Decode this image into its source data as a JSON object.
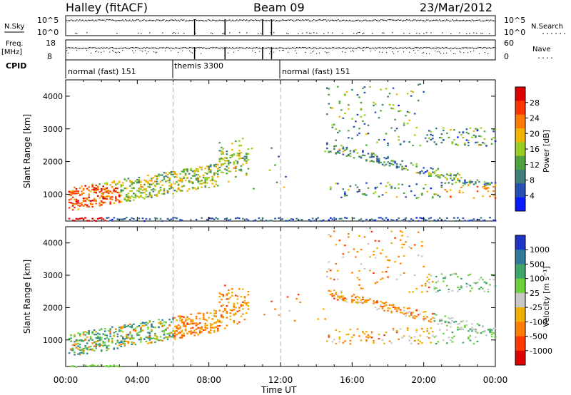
{
  "header": {
    "station": "Halley (fitACF)",
    "beam": "Beam 09",
    "date": "23/Mar/2012"
  },
  "strip_panels": {
    "noise": {
      "left_label": "N.Sky",
      "right_label": "N.Search",
      "right_legend_dots": "......",
      "left_ticks": [
        "10^5",
        "10^0"
      ],
      "right_ticks": [
        "10^5",
        "10^0"
      ]
    },
    "freq": {
      "left_label_line1": "Freq.",
      "left_label_line2": "[MHz]",
      "right_label": "Nave",
      "right_legend_dots": "....",
      "left_ticks": [
        "18",
        "8"
      ],
      "right_ticks": [
        "60",
        "0"
      ]
    },
    "cpid": {
      "label": "CPID",
      "segments": [
        {
          "name": "normal (fast) 151",
          "start_hour": 0.0,
          "end_hour": 6.0
        },
        {
          "name": "themis 3300",
          "start_hour": 6.0,
          "end_hour": 12.0
        },
        {
          "name": "normal (fast) 151",
          "start_hour": 12.0,
          "end_hour": 24.0
        }
      ]
    }
  },
  "chart_data": [
    {
      "type": "heatmap",
      "title": "",
      "xlabel": "Time UT",
      "ylabel": "Slant Range [km]",
      "xlim": [
        0,
        24
      ],
      "ylim": [
        180,
        4500
      ],
      "x_ticks": [
        "00:00",
        "04:00",
        "08:00",
        "12:00",
        "16:00",
        "20:00",
        "00:00"
      ],
      "y_ticks": [
        1000,
        2000,
        3000,
        4000
      ],
      "colorbar": {
        "label": "Power [dB]",
        "ticks": [
          4,
          8,
          12,
          16,
          20,
          24,
          28
        ],
        "range": [
          0,
          32
        ],
        "colors": [
          "#0a1cff",
          "#2a4fb4",
          "#3f7f7a",
          "#4fa23c",
          "#9acd20",
          "#f2b400",
          "#ff7a00",
          "#ff3300",
          "#e00000"
        ]
      },
      "features": [
        {
          "name": "morning echoes",
          "hours": [
            0.2,
            10.2
          ],
          "range_km": [
            600,
            2600
          ]
        },
        {
          "name": "near-range band",
          "hours": [
            0.0,
            24.0
          ],
          "range_km": [
            180,
            320
          ]
        },
        {
          "name": "afternoon-evening echoes",
          "hours": [
            14.5,
            24.0
          ],
          "range_km": [
            700,
            4500
          ]
        }
      ]
    },
    {
      "type": "heatmap",
      "title": "",
      "xlabel": "Time UT",
      "ylabel": "Slant Range [km]",
      "xlim": [
        0,
        24
      ],
      "ylim": [
        180,
        4500
      ],
      "x_ticks": [
        "00:00",
        "04:00",
        "08:00",
        "12:00",
        "16:00",
        "20:00",
        "00:00"
      ],
      "y_ticks": [
        1000,
        2000,
        3000,
        4000
      ],
      "colorbar": {
        "label": "Velocity [m s⁻¹]",
        "ticks": [
          "1000",
          "500",
          "100",
          "25",
          "-25",
          "-100",
          "-500",
          "-1000"
        ],
        "colors": [
          "#1f35c8",
          "#2f7a9a",
          "#3fa56a",
          "#6dd23a",
          "#c8c8c8",
          "#f0b000",
          "#ff7d00",
          "#ff3a00",
          "#e00000"
        ]
      },
      "features": [
        {
          "name": "morning flow",
          "hours": [
            0.2,
            10.2
          ],
          "range_km": [
            600,
            2600
          ]
        },
        {
          "name": "evening flow",
          "hours": [
            14.5,
            24.0
          ],
          "range_km": [
            700,
            4500
          ]
        }
      ]
    }
  ]
}
